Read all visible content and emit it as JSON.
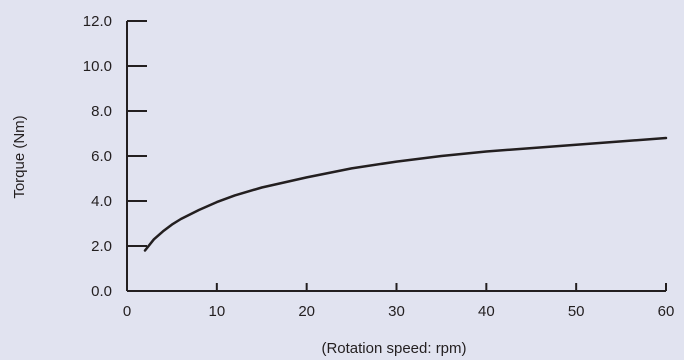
{
  "chart_data": {
    "type": "line",
    "title": "",
    "xlabel": "(Rotation speed: rpm)",
    "ylabel": "Torque (Nm)",
    "xlim": [
      0,
      60
    ],
    "ylim": [
      0,
      12
    ],
    "x_ticks": [
      "0",
      "10",
      "20",
      "30",
      "40",
      "50",
      "60"
    ],
    "y_ticks": [
      "0.0",
      "2.0",
      "4.0",
      "6.0",
      "8.0",
      "10.0",
      "12.0"
    ],
    "grid": false,
    "legend": "none",
    "series": [
      {
        "x": [
          2,
          3,
          4,
          5,
          6,
          8,
          10,
          12,
          15,
          20,
          25,
          30,
          35,
          40,
          45,
          50,
          55,
          60
        ],
        "y": [
          1.8,
          2.3,
          2.65,
          2.95,
          3.2,
          3.6,
          3.95,
          4.25,
          4.6,
          5.05,
          5.45,
          5.75,
          6.0,
          6.2,
          6.35,
          6.5,
          6.65,
          6.8
        ]
      }
    ],
    "colors": {
      "line": "#231f20",
      "axis": "#231f20",
      "background": "#e1e3f0"
    }
  }
}
